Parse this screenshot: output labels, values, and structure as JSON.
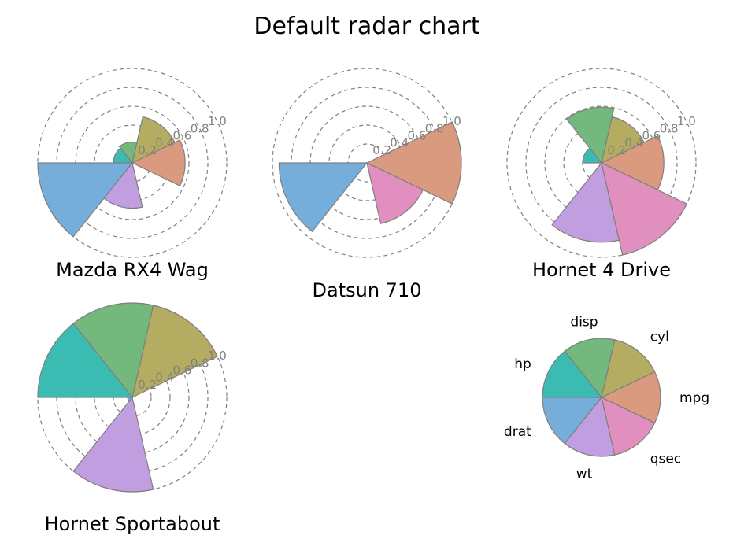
{
  "chart_data": {
    "type": "radar",
    "title": "Default radar chart",
    "variables": [
      "mpg",
      "cyl",
      "disp",
      "hp",
      "drat",
      "wt",
      "qsec"
    ],
    "colors": {
      "mpg": "#d99a7f",
      "cyl": "#b4ac60",
      "disp": "#73b87c",
      "hp": "#3bbcb3",
      "drat": "#75aedb",
      "wt": "#c19ee0",
      "qsec": "#e18fbe"
    },
    "radial_ticks": [
      "0.2",
      "0.4",
      "0.6",
      "0.8",
      "1.0"
    ],
    "radial_range": [
      0,
      1
    ],
    "grid": true,
    "legend_placement": "bottom-right",
    "panels": [
      {
        "name": "Mazda RX4 Wag",
        "values": {
          "mpg": 0.56,
          "cyl": 0.5,
          "disp": 0.22,
          "hp": 0.2,
          "drat": 1.0,
          "wt": 0.48,
          "qsec": 0.0
        }
      },
      {
        "name": "Datsun 710",
        "values": {
          "mpg": 1.0,
          "cyl": 0.0,
          "disp": 0.0,
          "hp": 0.0,
          "drat": 0.93,
          "wt": 0.0,
          "qsec": 0.66
        }
      },
      {
        "name": "Hornet 4 Drive",
        "values": {
          "mpg": 0.66,
          "cyl": 0.5,
          "disp": 0.59,
          "hp": 0.2,
          "drat": 0.0,
          "wt": 0.84,
          "qsec": 1.0
        }
      },
      {
        "name": "Hornet Sportabout",
        "values": {
          "mpg": 0.0,
          "cyl": 1.0,
          "disp": 1.0,
          "hp": 1.0,
          "drat": 0.05,
          "wt": 1.0,
          "qsec": 0.0
        }
      }
    ]
  }
}
